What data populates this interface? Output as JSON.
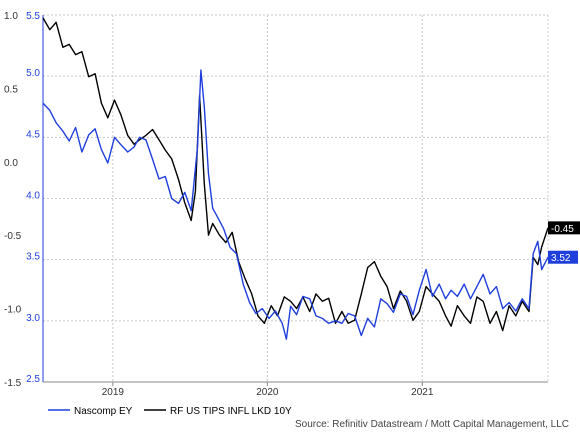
{
  "chart_data": {
    "type": "line",
    "title": "",
    "xlabel": "",
    "x_axis": {
      "labels": [
        "2019",
        "2020",
        "2021"
      ],
      "range": [
        "2018-07-20",
        "2021-10-25"
      ]
    },
    "y_left": {
      "color": "#1f3fdd",
      "range": [
        2.5,
        5.5
      ],
      "ticks": [
        "2.5",
        "3.0",
        "3.5",
        "4.0",
        "4.5",
        "5.0",
        "5.5"
      ]
    },
    "y_right_overlay": {
      "color": "#000000",
      "range": [
        -1.5,
        1.0
      ],
      "ticks": [
        "-1.5",
        "-1.0",
        "-0.5",
        "0.0",
        "0.5",
        "1.0"
      ]
    },
    "grid": true,
    "legend_position": "bottom-left",
    "series": [
      {
        "name": "Nascomp EY",
        "axis": "left",
        "color": "#1f3fdd",
        "points": [
          [
            "2018-07-20",
            4.78
          ],
          [
            "2018-08-05",
            4.72
          ],
          [
            "2018-08-20",
            4.62
          ],
          [
            "2018-09-05",
            4.55
          ],
          [
            "2018-09-20",
            4.47
          ],
          [
            "2018-10-05",
            4.58
          ],
          [
            "2018-10-20",
            4.38
          ],
          [
            "2018-11-05",
            4.52
          ],
          [
            "2018-11-20",
            4.57
          ],
          [
            "2018-12-05",
            4.4
          ],
          [
            "2018-12-20",
            4.29
          ],
          [
            "2019-01-05",
            4.5
          ],
          [
            "2019-01-20",
            4.44
          ],
          [
            "2019-02-05",
            4.38
          ],
          [
            "2019-02-20",
            4.42
          ],
          [
            "2019-03-05",
            4.5
          ],
          [
            "2019-03-20",
            4.48
          ],
          [
            "2019-04-05",
            4.32
          ],
          [
            "2019-04-20",
            4.16
          ],
          [
            "2019-05-05",
            4.18
          ],
          [
            "2019-05-20",
            4.0
          ],
          [
            "2019-06-05",
            3.96
          ],
          [
            "2019-06-20",
            4.05
          ],
          [
            "2019-07-05",
            3.9
          ],
          [
            "2019-07-20",
            4.42
          ],
          [
            "2019-07-28",
            5.05
          ],
          [
            "2019-08-05",
            4.75
          ],
          [
            "2019-08-15",
            4.2
          ],
          [
            "2019-08-25",
            3.92
          ],
          [
            "2019-09-05",
            3.85
          ],
          [
            "2019-09-20",
            3.75
          ],
          [
            "2019-10-05",
            3.6
          ],
          [
            "2019-10-20",
            3.55
          ],
          [
            "2019-11-05",
            3.3
          ],
          [
            "2019-11-20",
            3.15
          ],
          [
            "2019-12-05",
            3.06
          ],
          [
            "2019-12-20",
            3.1
          ],
          [
            "2020-01-05",
            3.02
          ],
          [
            "2020-01-20",
            3.08
          ],
          [
            "2020-02-05",
            2.98
          ],
          [
            "2020-02-15",
            2.85
          ],
          [
            "2020-02-25",
            3.12
          ],
          [
            "2020-03-10",
            3.05
          ],
          [
            "2020-03-25",
            3.2
          ],
          [
            "2020-04-10",
            3.18
          ],
          [
            "2020-04-25",
            3.04
          ],
          [
            "2020-05-10",
            3.02
          ],
          [
            "2020-05-25",
            2.98
          ],
          [
            "2020-06-10",
            3.0
          ],
          [
            "2020-06-25",
            2.98
          ],
          [
            "2020-07-10",
            3.06
          ],
          [
            "2020-07-25",
            3.04
          ],
          [
            "2020-08-10",
            2.88
          ],
          [
            "2020-08-25",
            3.02
          ],
          [
            "2020-09-10",
            2.95
          ],
          [
            "2020-09-25",
            3.18
          ],
          [
            "2020-10-10",
            3.14
          ],
          [
            "2020-10-25",
            3.07
          ],
          [
            "2020-11-10",
            3.22
          ],
          [
            "2020-11-25",
            3.2
          ],
          [
            "2020-12-10",
            3.05
          ],
          [
            "2020-12-25",
            3.25
          ],
          [
            "2021-01-10",
            3.42
          ],
          [
            "2021-01-25",
            3.2
          ],
          [
            "2021-02-10",
            3.3
          ],
          [
            "2021-02-25",
            3.18
          ],
          [
            "2021-03-10",
            3.25
          ],
          [
            "2021-03-25",
            3.2
          ],
          [
            "2021-04-10",
            3.3
          ],
          [
            "2021-04-25",
            3.18
          ],
          [
            "2021-05-10",
            3.28
          ],
          [
            "2021-05-25",
            3.38
          ],
          [
            "2021-06-10",
            3.22
          ],
          [
            "2021-06-25",
            3.28
          ],
          [
            "2021-07-10",
            3.1
          ],
          [
            "2021-07-25",
            3.15
          ],
          [
            "2021-08-10",
            3.08
          ],
          [
            "2021-08-25",
            3.18
          ],
          [
            "2021-09-10",
            3.1
          ],
          [
            "2021-09-20",
            3.55
          ],
          [
            "2021-10-01",
            3.65
          ],
          [
            "2021-10-10",
            3.42
          ],
          [
            "2021-10-25",
            3.52
          ]
        ]
      },
      {
        "name": "RF US TIPS INFL LKD 10Y",
        "axis": "right",
        "color": "#000000",
        "points": [
          [
            "2018-07-20",
            0.98
          ],
          [
            "2018-08-05",
            0.9
          ],
          [
            "2018-08-20",
            0.95
          ],
          [
            "2018-09-05",
            0.78
          ],
          [
            "2018-09-20",
            0.8
          ],
          [
            "2018-10-05",
            0.73
          ],
          [
            "2018-10-20",
            0.75
          ],
          [
            "2018-11-05",
            0.58
          ],
          [
            "2018-11-20",
            0.6
          ],
          [
            "2018-12-05",
            0.4
          ],
          [
            "2018-12-20",
            0.3
          ],
          [
            "2019-01-05",
            0.42
          ],
          [
            "2019-01-20",
            0.32
          ],
          [
            "2019-02-05",
            0.18
          ],
          [
            "2019-02-20",
            0.12
          ],
          [
            "2019-03-05",
            0.15
          ],
          [
            "2019-03-20",
            0.18
          ],
          [
            "2019-04-05",
            0.22
          ],
          [
            "2019-04-20",
            0.15
          ],
          [
            "2019-05-05",
            0.08
          ],
          [
            "2019-05-20",
            0.02
          ],
          [
            "2019-06-05",
            -0.12
          ],
          [
            "2019-06-20",
            -0.28
          ],
          [
            "2019-07-05",
            -0.4
          ],
          [
            "2019-07-15",
            -0.2
          ],
          [
            "2019-07-25",
            0.45
          ],
          [
            "2019-08-05",
            -0.15
          ],
          [
            "2019-08-15",
            -0.5
          ],
          [
            "2019-08-25",
            -0.42
          ],
          [
            "2019-09-10",
            -0.5
          ],
          [
            "2019-09-25",
            -0.55
          ],
          [
            "2019-10-10",
            -0.48
          ],
          [
            "2019-10-25",
            -0.68
          ],
          [
            "2019-11-10",
            -0.8
          ],
          [
            "2019-11-25",
            -0.9
          ],
          [
            "2019-12-10",
            -1.05
          ],
          [
            "2019-12-25",
            -1.1
          ],
          [
            "2020-01-10",
            -0.98
          ],
          [
            "2020-01-25",
            -1.05
          ],
          [
            "2020-02-10",
            -0.92
          ],
          [
            "2020-02-25",
            -0.95
          ],
          [
            "2020-03-10",
            -1.0
          ],
          [
            "2020-03-25",
            -0.92
          ],
          [
            "2020-04-10",
            -1.02
          ],
          [
            "2020-04-25",
            -0.9
          ],
          [
            "2020-05-10",
            -0.95
          ],
          [
            "2020-05-25",
            -0.93
          ],
          [
            "2020-06-10",
            -1.1
          ],
          [
            "2020-06-25",
            -1.02
          ],
          [
            "2020-07-10",
            -1.1
          ],
          [
            "2020-07-25",
            -1.08
          ],
          [
            "2020-08-10",
            -0.9
          ],
          [
            "2020-08-25",
            -0.72
          ],
          [
            "2020-09-10",
            -0.68
          ],
          [
            "2020-09-25",
            -0.78
          ],
          [
            "2020-10-10",
            -0.85
          ],
          [
            "2020-10-25",
            -1.0
          ],
          [
            "2020-11-10",
            -0.88
          ],
          [
            "2020-11-25",
            -0.95
          ],
          [
            "2020-12-10",
            -1.08
          ],
          [
            "2020-12-25",
            -1.02
          ],
          [
            "2021-01-10",
            -0.85
          ],
          [
            "2021-01-25",
            -0.9
          ],
          [
            "2021-02-10",
            -0.95
          ],
          [
            "2021-02-25",
            -1.05
          ],
          [
            "2021-03-10",
            -1.12
          ],
          [
            "2021-03-25",
            -0.98
          ],
          [
            "2021-04-10",
            -1.05
          ],
          [
            "2021-04-25",
            -1.1
          ],
          [
            "2021-05-10",
            -0.92
          ],
          [
            "2021-05-25",
            -0.95
          ],
          [
            "2021-06-10",
            -1.1
          ],
          [
            "2021-06-25",
            -1.02
          ],
          [
            "2021-07-10",
            -1.15
          ],
          [
            "2021-07-25",
            -0.98
          ],
          [
            "2021-08-10",
            -1.05
          ],
          [
            "2021-08-25",
            -0.95
          ],
          [
            "2021-09-10",
            -1.02
          ],
          [
            "2021-09-20",
            -0.65
          ],
          [
            "2021-10-01",
            -0.7
          ],
          [
            "2021-10-10",
            -0.58
          ],
          [
            "2021-10-25",
            -0.45
          ]
        ]
      }
    ],
    "end_labels": [
      {
        "series": "RF US TIPS INFL LKD 10Y",
        "text": "-0.45",
        "bg": "#000000"
      },
      {
        "series": "Nascomp EY",
        "text": "3.52",
        "bg": "#1f3fdd"
      }
    ],
    "source": "Source: Refinitiv Datastream / Mott Capital Management, LLC"
  }
}
